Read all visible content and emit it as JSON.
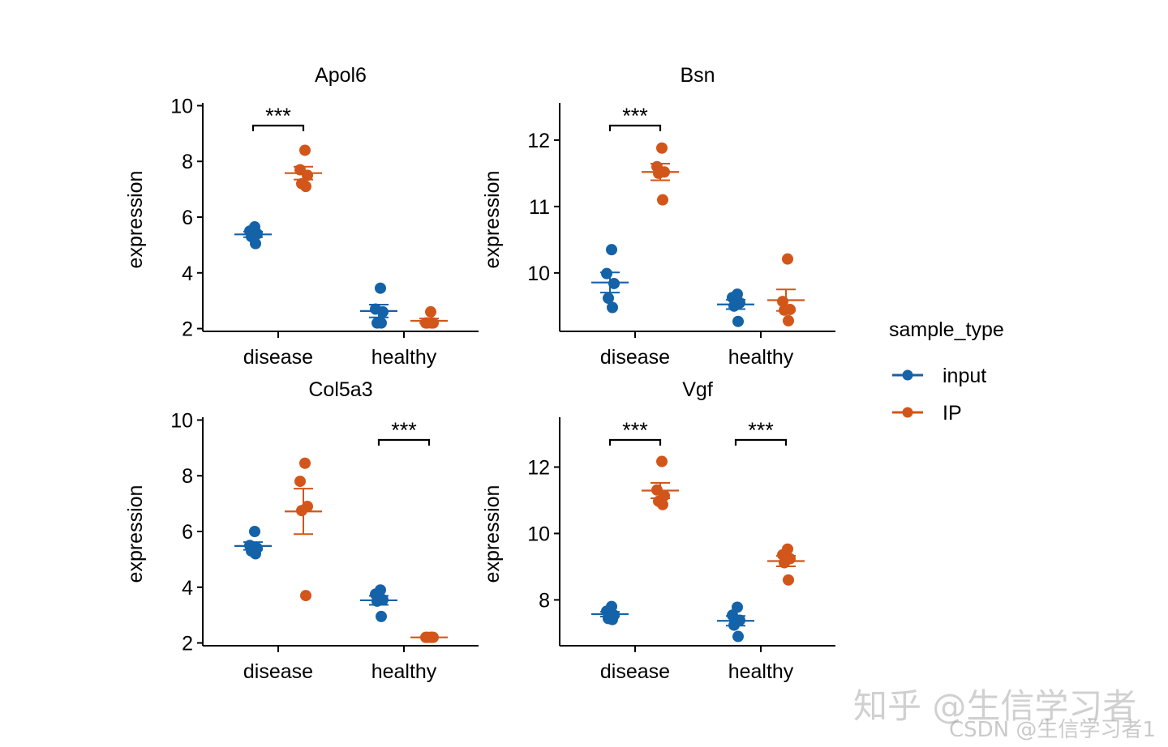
{
  "chart_data": [
    {
      "type": "scatter",
      "title": "Apol6",
      "ylabel": "expression",
      "categories": [
        "disease",
        "healthy"
      ],
      "yticks": [
        2,
        4,
        6,
        8,
        10
      ],
      "ylim": [
        1.9,
        10.1
      ],
      "series": [
        {
          "name": "input",
          "values": {
            "disease": [
              5.65,
              5.5,
              5.4,
              5.3,
              5.05
            ],
            "healthy": [
              3.45,
              2.7,
              2.6,
              2.2,
              2.2
            ]
          }
        },
        {
          "name": "IP",
          "values": {
            "disease": [
              8.4,
              7.7,
              7.5,
              7.2,
              7.1
            ],
            "healthy": [
              2.6,
              2.2,
              2.2,
              2.2,
              2.2
            ]
          }
        }
      ],
      "significance": [
        {
          "category": "disease",
          "label": "***"
        }
      ]
    },
    {
      "type": "scatter",
      "title": "Bsn",
      "ylabel": "expression",
      "categories": [
        "disease",
        "healthy"
      ],
      "yticks": [
        10,
        11,
        12
      ],
      "ylim": [
        9.12,
        12.56
      ],
      "series": [
        {
          "name": "input",
          "values": {
            "disease": [
              10.35,
              9.99,
              9.84,
              9.62,
              9.48
            ],
            "healthy": [
              9.68,
              9.63,
              9.55,
              9.5,
              9.27
            ]
          }
        },
        {
          "name": "IP",
          "values": {
            "disease": [
              11.88,
              11.6,
              11.52,
              11.5,
              11.1
            ],
            "healthy": [
              10.21,
              9.57,
              9.45,
              9.44,
              9.28
            ]
          }
        }
      ],
      "significance": [
        {
          "category": "disease",
          "label": "***"
        }
      ]
    },
    {
      "type": "scatter",
      "title": "Col5a3",
      "ylabel": "expression",
      "categories": [
        "disease",
        "healthy"
      ],
      "yticks": [
        2,
        4,
        6,
        8,
        10
      ],
      "ylim": [
        1.9,
        10.1
      ],
      "series": [
        {
          "name": "input",
          "values": {
            "disease": [
              6.0,
              5.5,
              5.4,
              5.3,
              5.2
            ],
            "healthy": [
              3.9,
              3.75,
              3.55,
              3.5,
              2.95
            ]
          }
        },
        {
          "name": "IP",
          "values": {
            "disease": [
              8.45,
              7.8,
              6.9,
              6.75,
              3.7
            ],
            "healthy": [
              2.2,
              2.2,
              2.2,
              2.2,
              2.2
            ]
          }
        }
      ],
      "significance": [
        {
          "category": "healthy",
          "label": "***"
        }
      ]
    },
    {
      "type": "scatter",
      "title": "Vgf",
      "ylabel": "expression",
      "categories": [
        "disease",
        "healthy"
      ],
      "yticks": [
        8,
        10,
        12
      ],
      "ylim": [
        6.62,
        13.5
      ],
      "series": [
        {
          "name": "input",
          "values": {
            "disease": [
              7.8,
              7.66,
              7.54,
              7.44,
              7.41
            ],
            "healthy": [
              7.78,
              7.54,
              7.39,
              7.24,
              6.9
            ]
          }
        },
        {
          "name": "IP",
          "values": {
            "disease": [
              12.17,
              11.31,
              11.14,
              10.97,
              10.87
            ],
            "healthy": [
              9.53,
              9.36,
              9.24,
              9.12,
              8.6
            ]
          }
        }
      ],
      "significance": [
        {
          "category": "disease",
          "label": "***"
        },
        {
          "category": "healthy",
          "label": "***"
        }
      ]
    }
  ],
  "legend": {
    "title": "sample_type",
    "position": "right",
    "items": [
      {
        "label": "input",
        "color": "#1462A8"
      },
      {
        "label": "IP",
        "color": "#D2561A"
      }
    ]
  },
  "watermark": {
    "zhihu": "知乎 @生信学习者",
    "csdn": "CSDN @生信学习者1"
  }
}
